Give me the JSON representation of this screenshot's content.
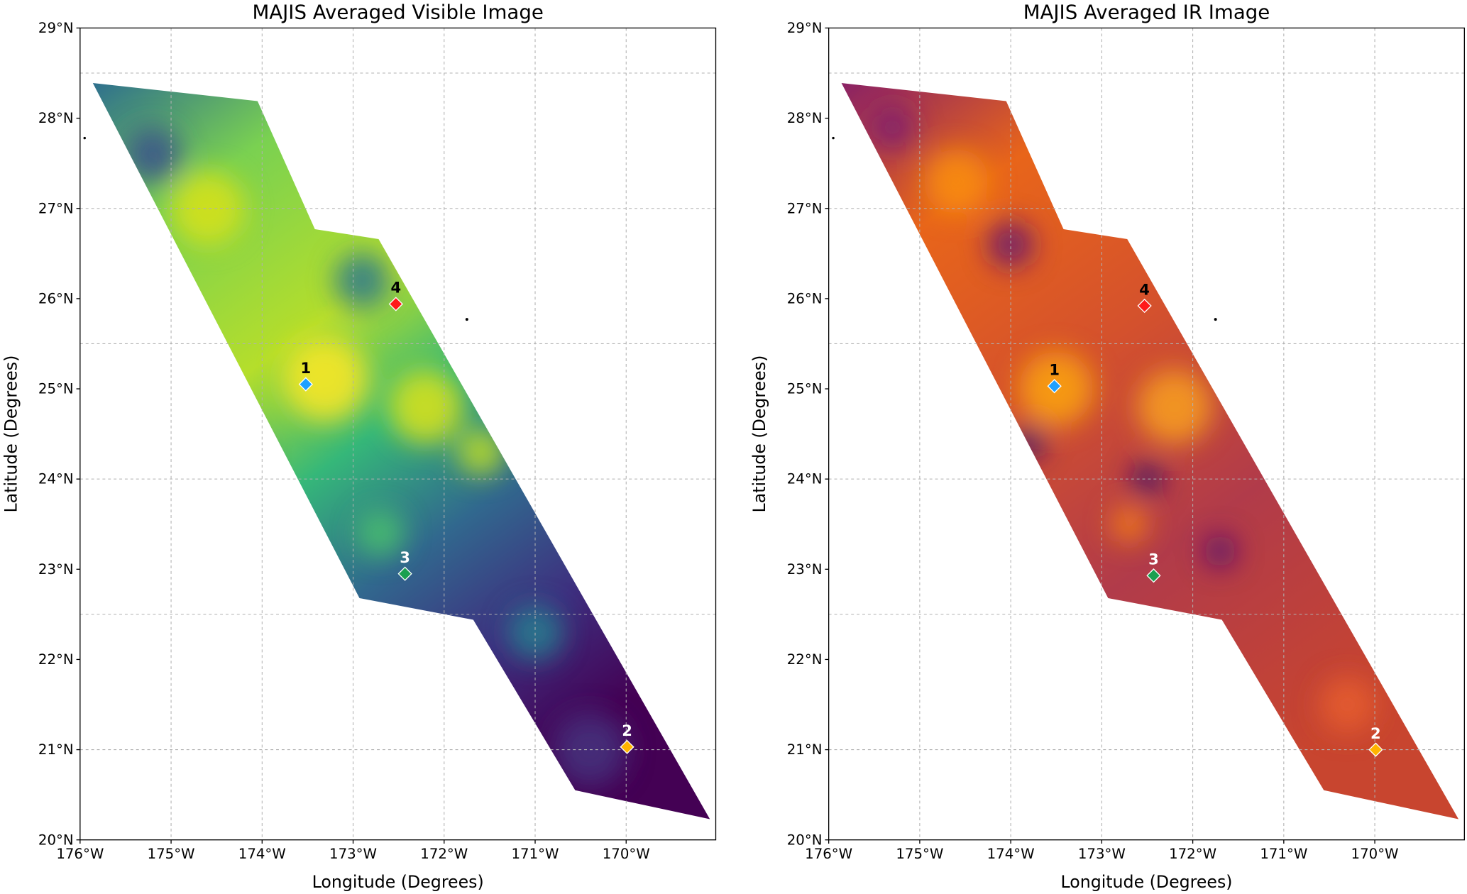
{
  "chart_data": [
    {
      "type": "heatmap",
      "title": "MAJIS Averaged Visible Image",
      "xlabel": "Longitude (Degrees)",
      "ylabel": "Latitude (Degrees)",
      "colormap": "viridis",
      "xlim": [
        -176,
        -169.0
      ],
      "ylim": [
        20,
        29
      ],
      "xticks": [
        -176,
        -175,
        -174,
        -173,
        -172,
        -171,
        -170
      ],
      "xtick_labels": [
        "176°W",
        "175°W",
        "174°W",
        "173°W",
        "172°W",
        "171°W",
        "170°W"
      ],
      "yticks": [
        20,
        21,
        22,
        23,
        24,
        25,
        26,
        27,
        28,
        29
      ],
      "ytick_labels": [
        "20°N",
        "21°N",
        "22°N",
        "23°N",
        "24°N",
        "25°N",
        "26°N",
        "27°N",
        "28°N",
        "29°N"
      ],
      "grid": true,
      "swath_lonlat": [
        [
          -175.86,
          28.39
        ],
        [
          -174.05,
          28.19
        ],
        [
          -173.42,
          26.77
        ],
        [
          -172.72,
          26.66
        ],
        [
          -169.08,
          20.23
        ],
        [
          -170.56,
          20.55
        ],
        [
          -171.68,
          22.44
        ],
        [
          -172.93,
          22.68
        ]
      ],
      "markers": [
        {
          "label": "1",
          "lon": -173.52,
          "lat": 25.05,
          "color": "#1ea0ff",
          "label_color": "#000000"
        },
        {
          "label": "4",
          "lon": -172.53,
          "lat": 25.94,
          "color": "#ff1a1a",
          "label_color": "#000000"
        },
        {
          "label": "3",
          "lon": -172.43,
          "lat": 22.95,
          "color": "#1aa050",
          "label_color": "#ffffff"
        },
        {
          "label": "2",
          "lon": -169.99,
          "lat": 21.03,
          "color": "#ffb400",
          "label_color": "#ffffff"
        }
      ]
    },
    {
      "type": "heatmap",
      "title": "MAJIS Averaged IR Image",
      "xlabel": "Longitude (Degrees)",
      "ylabel": "Latitude (Degrees)",
      "colormap": "inferno",
      "xlim": [
        -176,
        -169.0
      ],
      "ylim": [
        20,
        29
      ],
      "xticks": [
        -176,
        -175,
        -174,
        -173,
        -172,
        -171,
        -170
      ],
      "xtick_labels": [
        "176°W",
        "175°W",
        "174°W",
        "173°W",
        "172°W",
        "171°W",
        "170°W"
      ],
      "yticks": [
        20,
        21,
        22,
        23,
        24,
        25,
        26,
        27,
        28,
        29
      ],
      "ytick_labels": [
        "20°N",
        "21°N",
        "22°N",
        "23°N",
        "24°N",
        "25°N",
        "26°N",
        "27°N",
        "28°N",
        "29°N"
      ],
      "grid": true,
      "swath_lonlat": [
        [
          -175.86,
          28.39
        ],
        [
          -174.05,
          28.19
        ],
        [
          -173.42,
          26.77
        ],
        [
          -172.72,
          26.66
        ],
        [
          -169.08,
          20.23
        ],
        [
          -170.56,
          20.55
        ],
        [
          -171.68,
          22.44
        ],
        [
          -172.93,
          22.68
        ]
      ],
      "markers": [
        {
          "label": "1",
          "lon": -173.52,
          "lat": 25.03,
          "color": "#1ea0ff",
          "label_color": "#000000"
        },
        {
          "label": "4",
          "lon": -172.53,
          "lat": 25.92,
          "color": "#ff1a1a",
          "label_color": "#000000"
        },
        {
          "label": "3",
          "lon": -172.43,
          "lat": 22.93,
          "color": "#1aa050",
          "label_color": "#ffffff"
        },
        {
          "label": "2",
          "lon": -169.99,
          "lat": 21.0,
          "color": "#ffb400",
          "label_color": "#ffffff"
        }
      ]
    }
  ]
}
